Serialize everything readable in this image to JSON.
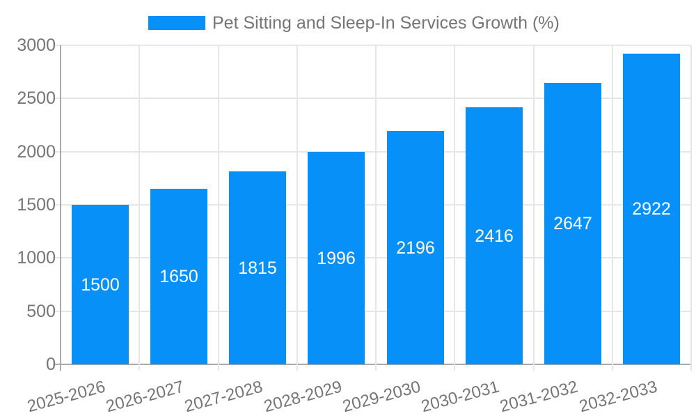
{
  "chart_data": {
    "type": "bar",
    "title": "",
    "legend_position": "top",
    "value_labels": "inside-center",
    "grid": true,
    "categories": [
      "2025-2026",
      "2026-2027",
      "2027-2028",
      "2028-2029",
      "2029-2030",
      "2030-2031",
      "2031-2032",
      "2032-2033"
    ],
    "series": [
      {
        "name": "Pet Sitting and Sleep-In Services Growth (%)",
        "values": [
          1500,
          1650,
          1815,
          1996,
          2196,
          2416,
          2647,
          2922
        ],
        "color": "#0690f8"
      }
    ],
    "xlabel": "",
    "ylabel": "",
    "ylim": [
      0,
      3000
    ],
    "yticks": [
      0,
      500,
      1000,
      1500,
      2000,
      2500,
      3000
    ],
    "colors": {
      "bar": "#0690f8",
      "gridline": "#e6e6e6",
      "axis": "#ababab",
      "tick_text": "#757575",
      "legend_text": "#757575",
      "bar_label_text": "#ffffff",
      "background": "#ffffff"
    }
  }
}
